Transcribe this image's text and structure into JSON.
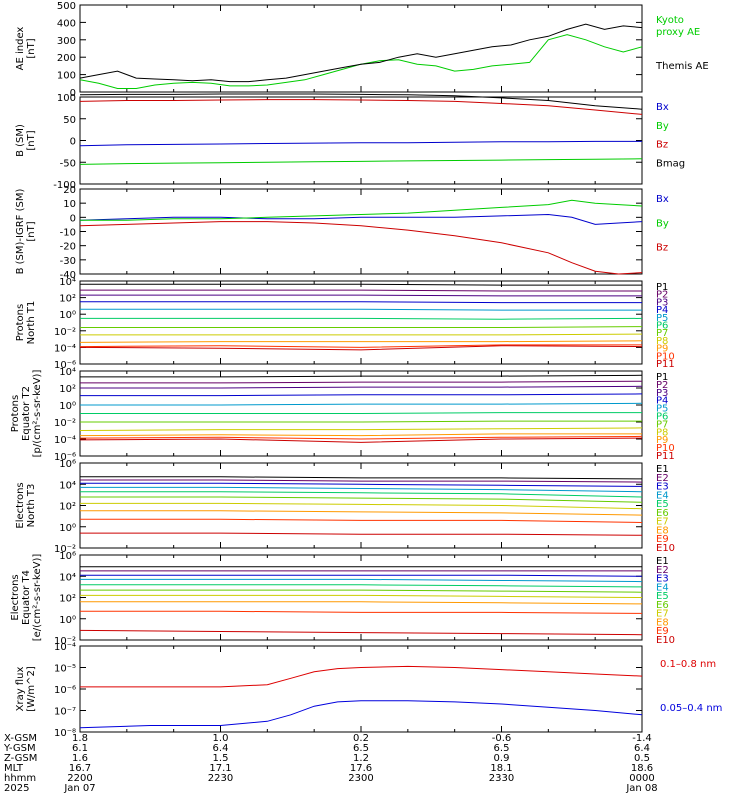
{
  "chart_data": [
    {
      "type": "line",
      "ylabel": "AE index\n[nT]",
      "ylim": [
        0,
        500
      ],
      "scale": "linear",
      "ticks": [
        {
          "v": 0,
          "label": "0"
        },
        {
          "v": 100,
          "label": "100"
        },
        {
          "v": 200,
          "label": "200"
        },
        {
          "v": 300,
          "label": "300"
        },
        {
          "v": 400,
          "label": "400"
        },
        {
          "v": 500,
          "label": "500"
        }
      ],
      "x": [
        0,
        4,
        8,
        12,
        16,
        20,
        24,
        28,
        32,
        36,
        40,
        44,
        48,
        52,
        56,
        60,
        64,
        68,
        72,
        76,
        80,
        84,
        88,
        92,
        96,
        100,
        104,
        108,
        112,
        116,
        120
      ],
      "series": [
        {
          "name": "Kyoto\nproxy AE",
          "color": "#00cc00",
          "values": [
            70,
            50,
            20,
            20,
            40,
            50,
            55,
            50,
            35,
            35,
            40,
            55,
            70,
            100,
            130,
            160,
            180,
            185,
            160,
            150,
            120,
            130,
            150,
            160,
            170,
            300,
            330,
            300,
            260,
            230,
            260
          ]
        },
        {
          "name": "Themis AE",
          "color": "#000000",
          "values": [
            80,
            100,
            120,
            80,
            75,
            70,
            65,
            70,
            60,
            60,
            70,
            80,
            100,
            120,
            140,
            160,
            170,
            200,
            220,
            200,
            220,
            240,
            260,
            270,
            300,
            320,
            360,
            390,
            360,
            380,
            370
          ]
        }
      ]
    },
    {
      "type": "line",
      "ylabel": "B (SM)\n[nT]",
      "ylim": [
        -100,
        100
      ],
      "scale": "linear",
      "ticks": [
        {
          "v": -100,
          "label": "-100"
        },
        {
          "v": -50,
          "label": "-50"
        },
        {
          "v": 0,
          "label": "0"
        },
        {
          "v": 50,
          "label": "50"
        },
        {
          "v": 100,
          "label": "100"
        }
      ],
      "x": [
        0,
        10,
        20,
        30,
        40,
        50,
        60,
        70,
        80,
        90,
        100,
        110,
        120
      ],
      "series": [
        {
          "name": "Bx",
          "color": "#0000cc",
          "values": [
            -12,
            -10,
            -9,
            -8,
            -7,
            -6,
            -5,
            -5,
            -4,
            -3,
            -3,
            -2,
            -2
          ]
        },
        {
          "name": "By",
          "color": "#00cc00",
          "values": [
            -55,
            -53,
            -52,
            -51,
            -50,
            -49,
            -48,
            -47,
            -46,
            -45,
            -44,
            -43,
            -42
          ]
        },
        {
          "name": "Bz",
          "color": "#cc0000",
          "values": [
            90,
            92,
            92,
            93,
            94,
            94,
            93,
            92,
            90,
            85,
            80,
            70,
            60
          ]
        },
        {
          "name": "Bmag",
          "color": "#000000",
          "values": [
            105,
            106,
            106,
            107,
            107,
            107,
            106,
            105,
            103,
            98,
            92,
            80,
            72
          ]
        }
      ]
    },
    {
      "type": "line",
      "ylabel": "B (SM)-IGRF (SM)\n[nT]",
      "ylim": [
        -40,
        20
      ],
      "scale": "linear",
      "ticks": [
        {
          "v": -40,
          "label": "-40"
        },
        {
          "v": -30,
          "label": "-30"
        },
        {
          "v": -20,
          "label": "-20"
        },
        {
          "v": -10,
          "label": "-10"
        },
        {
          "v": 0,
          "label": "0"
        },
        {
          "v": 10,
          "label": "10"
        },
        {
          "v": 20,
          "label": "20"
        }
      ],
      "x": [
        0,
        10,
        20,
        30,
        40,
        50,
        60,
        70,
        80,
        90,
        100,
        105,
        110,
        115,
        120
      ],
      "series": [
        {
          "name": "Bx",
          "color": "#0000cc",
          "values": [
            -2,
            -1,
            0,
            0,
            -1,
            -1,
            0,
            0,
            0,
            1,
            2,
            0,
            -5,
            -4,
            -3
          ]
        },
        {
          "name": "By",
          "color": "#00cc00",
          "values": [
            -2,
            -2,
            -1,
            -1,
            0,
            1,
            2,
            3,
            5,
            7,
            9,
            12,
            10,
            9,
            8
          ]
        },
        {
          "name": "Bz",
          "color": "#cc0000",
          "values": [
            -6,
            -5,
            -4,
            -3,
            -3,
            -4,
            -6,
            -9,
            -13,
            -18,
            -25,
            -32,
            -38,
            -40,
            -39
          ]
        }
      ]
    },
    {
      "type": "line",
      "ylabel": "Protons\nNorth T1",
      "ylim": [
        -6,
        4
      ],
      "scale": "log10",
      "ticks": [
        {
          "v": -6,
          "label": "10⁻⁶"
        },
        {
          "v": -4,
          "label": "10⁻⁴"
        },
        {
          "v": -2,
          "label": "10⁻²"
        },
        {
          "v": 0,
          "label": "10⁰"
        },
        {
          "v": 2,
          "label": "10²"
        },
        {
          "v": 4,
          "label": "10⁴"
        }
      ],
      "x": [
        0,
        30,
        60,
        90,
        120
      ],
      "series": [
        {
          "name": "P1",
          "color": "#000000",
          "values": [
            3.6,
            3.6,
            3.6,
            3.5,
            3.5
          ]
        },
        {
          "name": "P2",
          "color": "#660066",
          "values": [
            2.9,
            2.9,
            2.9,
            2.8,
            2.8
          ]
        },
        {
          "name": "P3",
          "color": "#4b0082",
          "values": [
            2.3,
            2.3,
            2.3,
            2.2,
            2.2
          ]
        },
        {
          "name": "P4",
          "color": "#0000cc",
          "values": [
            1.5,
            1.5,
            1.5,
            1.4,
            1.4
          ]
        },
        {
          "name": "P5",
          "color": "#0099cc",
          "values": [
            0.6,
            0.6,
            0.6,
            0.5,
            0.5
          ]
        },
        {
          "name": "P6",
          "color": "#00cc66",
          "values": [
            -0.5,
            -0.5,
            -0.5,
            -0.6,
            -0.5
          ]
        },
        {
          "name": "P7",
          "color": "#66cc00",
          "values": [
            -1.6,
            -1.6,
            -1.6,
            -1.6,
            -1.5
          ]
        },
        {
          "name": "P8",
          "color": "#cccc00",
          "values": [
            -2.5,
            -2.5,
            -2.5,
            -2.5,
            -2.4
          ]
        },
        {
          "name": "P9",
          "color": "#ff9900",
          "values": [
            -3.4,
            -3.3,
            -3.3,
            -3.3,
            -3.2
          ]
        },
        {
          "name": "P10",
          "color": "#ff3300",
          "values": [
            -3.9,
            -3.8,
            -4.0,
            -3.7,
            -3.7
          ]
        },
        {
          "name": "P11",
          "color": "#cc0000",
          "values": [
            -4.0,
            -4.1,
            -4.3,
            -3.8,
            -3.9
          ]
        }
      ]
    },
    {
      "type": "line",
      "ylabel": "Protons\nEquator T2\n[p/(cm²-s-sr-keV)]",
      "ylim": [
        -6,
        4
      ],
      "scale": "log10",
      "ticks": [
        {
          "v": -6,
          "label": "10⁻⁶"
        },
        {
          "v": -4,
          "label": "10⁻⁴"
        },
        {
          "v": -2,
          "label": "10⁻²"
        },
        {
          "v": 0,
          "label": "10⁰"
        },
        {
          "v": 2,
          "label": "10²"
        },
        {
          "v": 4,
          "label": "10⁴"
        }
      ],
      "x": [
        0,
        30,
        60,
        90,
        120
      ],
      "series": [
        {
          "name": "P1",
          "color": "#000000",
          "values": [
            3.3,
            3.3,
            3.4,
            3.4,
            3.5
          ]
        },
        {
          "name": "P2",
          "color": "#660066",
          "values": [
            2.6,
            2.6,
            2.7,
            2.7,
            2.8
          ]
        },
        {
          "name": "P3",
          "color": "#4b0082",
          "values": [
            2.0,
            2.0,
            2.1,
            2.1,
            2.2
          ]
        },
        {
          "name": "P4",
          "color": "#0000cc",
          "values": [
            1.1,
            1.1,
            1.2,
            1.2,
            1.3
          ]
        },
        {
          "name": "P5",
          "color": "#0099cc",
          "values": [
            0.0,
            0.0,
            0.1,
            0.1,
            0.2
          ]
        },
        {
          "name": "P6",
          "color": "#00cc66",
          "values": [
            -1.0,
            -1.0,
            -1.0,
            -0.9,
            -0.9
          ]
        },
        {
          "name": "P7",
          "color": "#66cc00",
          "values": [
            -2.0,
            -2.0,
            -2.0,
            -1.9,
            -1.9
          ]
        },
        {
          "name": "P8",
          "color": "#cccc00",
          "values": [
            -3.0,
            -2.9,
            -2.9,
            -2.8,
            -2.7
          ]
        },
        {
          "name": "P9",
          "color": "#ff9900",
          "values": [
            -3.6,
            -3.5,
            -3.6,
            -3.4,
            -3.4
          ]
        },
        {
          "name": "P10",
          "color": "#ff3300",
          "values": [
            -3.9,
            -3.8,
            -4.0,
            -3.8,
            -3.7
          ]
        },
        {
          "name": "P11",
          "color": "#cc0000",
          "values": [
            -4.1,
            -4.0,
            -4.4,
            -4.0,
            -3.9
          ]
        }
      ]
    },
    {
      "type": "line",
      "ylabel": "Electrons\nNorth T3",
      "ylim": [
        -2,
        6
      ],
      "scale": "log10",
      "ticks": [
        {
          "v": -2,
          "label": "10⁻²"
        },
        {
          "v": 0,
          "label": "10⁰"
        },
        {
          "v": 2,
          "label": "10²"
        },
        {
          "v": 4,
          "label": "10⁴"
        },
        {
          "v": 6,
          "label": "10⁶"
        }
      ],
      "x": [
        0,
        30,
        60,
        90,
        120
      ],
      "series": [
        {
          "name": "E1",
          "color": "#000000",
          "values": [
            4.7,
            4.7,
            4.6,
            4.6,
            4.5
          ]
        },
        {
          "name": "E2",
          "color": "#660066",
          "values": [
            4.4,
            4.4,
            4.3,
            4.3,
            4.2
          ]
        },
        {
          "name": "E3",
          "color": "#0000cc",
          "values": [
            4.1,
            4.1,
            4.0,
            3.9,
            3.8
          ]
        },
        {
          "name": "E4",
          "color": "#0099cc",
          "values": [
            3.7,
            3.7,
            3.6,
            3.5,
            3.3
          ]
        },
        {
          "name": "E5",
          "color": "#00cc66",
          "values": [
            3.3,
            3.3,
            3.2,
            3.1,
            2.8
          ]
        },
        {
          "name": "E6",
          "color": "#66cc00",
          "values": [
            2.8,
            2.8,
            2.7,
            2.6,
            2.3
          ]
        },
        {
          "name": "E7",
          "color": "#cccc00",
          "values": [
            2.2,
            2.2,
            2.1,
            2.0,
            1.7
          ]
        },
        {
          "name": "E8",
          "color": "#ff9900",
          "values": [
            1.5,
            1.5,
            1.4,
            1.3,
            1.1
          ]
        },
        {
          "name": "E9",
          "color": "#ff3300",
          "values": [
            0.7,
            0.7,
            0.6,
            0.6,
            0.4
          ]
        },
        {
          "name": "E10",
          "color": "#cc0000",
          "values": [
            -0.6,
            -0.6,
            -0.7,
            -0.7,
            -0.8
          ]
        }
      ]
    },
    {
      "type": "line",
      "ylabel": "Electrons\nEquator T4\n[e/(cm²-s-sr-keV)]",
      "ylim": [
        -2,
        6
      ],
      "scale": "log10",
      "ticks": [
        {
          "v": -2,
          "label": "10⁻²"
        },
        {
          "v": 0,
          "label": "10⁰"
        },
        {
          "v": 2,
          "label": "10²"
        },
        {
          "v": 4,
          "label": "10⁴"
        },
        {
          "v": 6,
          "label": "10⁶"
        }
      ],
      "x": [
        0,
        30,
        60,
        90,
        120
      ],
      "series": [
        {
          "name": "E1",
          "color": "#000000",
          "values": [
            4.9,
            4.9,
            4.9,
            4.9,
            4.9
          ]
        },
        {
          "name": "E2",
          "color": "#660066",
          "values": [
            4.5,
            4.5,
            4.5,
            4.5,
            4.5
          ]
        },
        {
          "name": "E3",
          "color": "#0000cc",
          "values": [
            4.1,
            4.1,
            4.1,
            4.1,
            4.0
          ]
        },
        {
          "name": "E4",
          "color": "#0099cc",
          "values": [
            3.7,
            3.7,
            3.7,
            3.6,
            3.5
          ]
        },
        {
          "name": "E5",
          "color": "#00cc66",
          "values": [
            3.2,
            3.2,
            3.2,
            3.1,
            3.0
          ]
        },
        {
          "name": "E6",
          "color": "#66cc00",
          "values": [
            2.7,
            2.7,
            2.7,
            2.6,
            2.5
          ]
        },
        {
          "name": "E7",
          "color": "#cccc00",
          "values": [
            2.2,
            2.2,
            2.2,
            2.1,
            2.0
          ]
        },
        {
          "name": "E8",
          "color": "#ff9900",
          "values": [
            1.6,
            1.6,
            1.6,
            1.5,
            1.4
          ]
        },
        {
          "name": "E9",
          "color": "#ff3300",
          "values": [
            0.7,
            0.7,
            0.6,
            0.6,
            0.5
          ]
        },
        {
          "name": "E10",
          "color": "#cc0000",
          "values": [
            -1.1,
            -1.2,
            -1.3,
            -1.4,
            -1.5
          ]
        }
      ]
    },
    {
      "type": "line",
      "ylabel": "Xray flux\n[W/m^2]",
      "ylim": [
        -8,
        -4
      ],
      "scale": "log10",
      "ticks": [
        {
          "v": -8,
          "label": "10⁻⁸"
        },
        {
          "v": -7,
          "label": "10⁻⁷"
        },
        {
          "v": -6,
          "label": "10⁻⁶"
        },
        {
          "v": -5,
          "label": "10⁻⁵"
        },
        {
          "v": -4,
          "label": "10⁻⁴"
        }
      ],
      "x": [
        0,
        15,
        30,
        40,
        45,
        50,
        55,
        60,
        70,
        80,
        90,
        100,
        110,
        120
      ],
      "series": [
        {
          "name": "0.1–0.8 nm",
          "color": "#dd0000",
          "values": [
            -5.9,
            -5.9,
            -5.9,
            -5.8,
            -5.5,
            -5.2,
            -5.05,
            -5.0,
            -4.95,
            -5.0,
            -5.1,
            -5.2,
            -5.3,
            -5.4
          ]
        },
        {
          "name": "0.05–0.4 nm",
          "color": "#0000dd",
          "values": [
            -7.8,
            -7.7,
            -7.7,
            -7.5,
            -7.2,
            -6.8,
            -6.6,
            -6.55,
            -6.55,
            -6.6,
            -6.7,
            -6.85,
            -7.0,
            -7.2
          ]
        }
      ]
    }
  ],
  "x_axis": {
    "row_labels": [
      "X-GSM",
      "Y-GSM",
      "Z-GSM",
      "MLT",
      "hhmm",
      "2025"
    ],
    "columns": [
      {
        "t": 0,
        "values": [
          "1.8",
          "6.1",
          "1.6",
          "16.7",
          "2200",
          "Jan 07"
        ]
      },
      {
        "t": 30,
        "values": [
          "1.0",
          "6.4",
          "1.5",
          "17.1",
          "2230",
          ""
        ]
      },
      {
        "t": 60,
        "values": [
          "0.2",
          "6.5",
          "1.2",
          "17.6",
          "2300",
          ""
        ]
      },
      {
        "t": 90,
        "values": [
          "-0.6",
          "6.5",
          "0.9",
          "18.1",
          "2330",
          ""
        ]
      },
      {
        "t": 120,
        "values": [
          "-1.4",
          "6.4",
          "0.5",
          "18.6",
          "0000",
          "Jan 08"
        ]
      }
    ]
  }
}
